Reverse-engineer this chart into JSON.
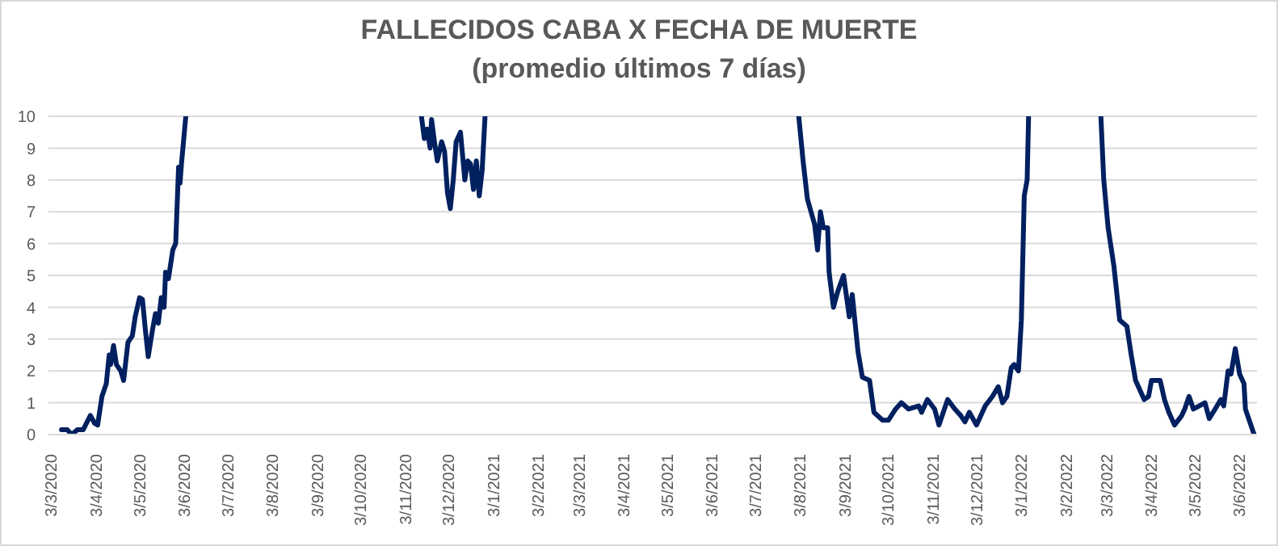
{
  "chart_data": {
    "type": "line",
    "title": "FALLECIDOS CABA X FECHA DE MUERTE",
    "subtitle": "(promedio últimos 7 días)",
    "x": [
      "2020-03-09",
      "2020-03-13",
      "2020-03-16",
      "2020-03-20",
      "2020-03-24",
      "2020-03-29",
      "2020-04-01",
      "2020-04-03",
      "2020-04-06",
      "2020-04-09",
      "2020-04-11",
      "2020-04-12",
      "2020-04-14",
      "2020-04-16",
      "2020-04-19",
      "2020-04-21",
      "2020-04-24",
      "2020-04-27",
      "2020-04-29",
      "2020-05-02",
      "2020-05-04",
      "2020-05-06",
      "2020-05-08",
      "2020-05-11",
      "2020-05-13",
      "2020-05-15",
      "2020-05-17",
      "2020-05-19",
      "2020-05-20",
      "2020-05-22",
      "2020-05-25",
      "2020-05-27",
      "2020-05-29",
      "2020-05-30",
      "2020-05-31",
      "2020-06-03",
      "2020-08-01",
      "2020-11-13",
      "2020-11-15",
      "2020-11-17",
      "2020-11-19",
      "2020-11-20",
      "2020-11-22",
      "2020-11-24",
      "2020-11-27",
      "2020-11-29",
      "2020-12-01",
      "2020-12-03",
      "2020-12-05",
      "2020-12-07",
      "2020-12-10",
      "2020-12-13",
      "2020-12-15",
      "2020-12-17",
      "2020-12-19",
      "2020-12-21",
      "2020-12-23",
      "2020-12-25",
      "2020-12-27",
      "2021-04-01",
      "2021-08-01",
      "2021-08-04",
      "2021-08-07",
      "2021-08-12",
      "2021-08-14",
      "2021-08-16",
      "2021-08-18",
      "2021-08-21",
      "2021-08-22",
      "2021-08-25",
      "2021-08-28",
      "2021-09-01",
      "2021-09-05",
      "2021-09-07",
      "2021-09-11",
      "2021-09-14",
      "2021-09-19",
      "2021-09-22",
      "2021-09-28",
      "2021-10-02",
      "2021-10-07",
      "2021-10-11",
      "2021-10-16",
      "2021-10-23",
      "2021-10-25",
      "2021-10-29",
      "2021-11-03",
      "2021-11-06",
      "2021-11-12",
      "2021-11-17",
      "2021-11-21",
      "2021-11-24",
      "2021-11-27",
      "2021-12-02",
      "2021-12-08",
      "2021-12-13",
      "2021-12-17",
      "2021-12-20",
      "2021-12-23",
      "2021-12-26",
      "2021-12-28",
      "2021-12-31",
      "2022-01-02",
      "2022-01-04",
      "2022-01-06",
      "2022-01-07",
      "2022-02-01",
      "2022-02-26",
      "2022-02-28",
      "2022-03-03",
      "2022-03-07",
      "2022-03-11",
      "2022-03-16",
      "2022-03-19",
      "2022-03-22",
      "2022-03-28",
      "2022-03-31",
      "2022-04-02",
      "2022-04-08",
      "2022-04-11",
      "2022-04-14",
      "2022-04-18",
      "2022-04-23",
      "2022-04-25",
      "2022-04-28",
      "2022-05-01",
      "2022-05-05",
      "2022-05-09",
      "2022-05-12",
      "2022-05-16",
      "2022-05-20",
      "2022-05-22",
      "2022-05-25",
      "2022-05-27",
      "2022-05-30",
      "2022-06-02",
      "2022-06-05",
      "2022-06-06",
      "2022-06-12"
    ],
    "values": [
      0.15,
      0.15,
      0.0,
      0.15,
      0.15,
      0.6,
      0.35,
      0.3,
      1.2,
      1.6,
      2.5,
      2.2,
      2.8,
      2.2,
      2.0,
      1.7,
      2.9,
      3.1,
      3.7,
      4.3,
      4.25,
      3.3,
      2.45,
      3.3,
      3.8,
      3.5,
      4.3,
      4.0,
      5.1,
      4.9,
      5.8,
      6.0,
      8.4,
      7.9,
      8.5,
      10,
      null,
      10,
      9.3,
      9.6,
      9.0,
      9.9,
      9.2,
      8.6,
      9.2,
      8.9,
      7.6,
      7.1,
      8.0,
      9.2,
      9.5,
      8.0,
      8.6,
      8.5,
      7.7,
      8.6,
      7.5,
      8.3,
      10,
      null,
      10,
      8.6,
      7.4,
      6.6,
      5.8,
      7.0,
      6.5,
      6.5,
      5.1,
      4.0,
      4.5,
      5.0,
      3.7,
      4.4,
      2.6,
      1.8,
      1.7,
      0.7,
      0.45,
      0.45,
      0.8,
      1.0,
      0.8,
      0.9,
      0.7,
      1.1,
      0.8,
      0.3,
      1.1,
      0.8,
      0.6,
      0.4,
      0.7,
      0.3,
      0.9,
      1.2,
      1.5,
      1.0,
      1.2,
      2.1,
      2.2,
      2.0,
      3.6,
      7.5,
      8.0,
      10,
      null,
      10,
      8.0,
      6.5,
      5.3,
      3.6,
      3.4,
      2.5,
      1.7,
      1.1,
      1.2,
      1.7,
      1.7,
      1.1,
      0.7,
      0.3,
      0.6,
      0.8,
      1.2,
      0.8,
      0.9,
      1.0,
      0.5,
      0.8,
      1.1,
      0.9,
      2.0,
      1.9,
      2.7,
      1.9,
      1.6,
      0.8,
      0.0
    ],
    "color": "#002060",
    "xlim": [
      "2020-02-29",
      "2022-06-14"
    ],
    "xticks": [
      {
        "value": "2020-03-03",
        "label": "3/3/2020"
      },
      {
        "value": "2020-04-03",
        "label": "3/4/2020"
      },
      {
        "value": "2020-05-03",
        "label": "3/5/2020"
      },
      {
        "value": "2020-06-03",
        "label": "3/6/2020"
      },
      {
        "value": "2020-07-03",
        "label": "3/7/2020"
      },
      {
        "value": "2020-08-03",
        "label": "3/8/2020"
      },
      {
        "value": "2020-09-03",
        "label": "3/9/2020"
      },
      {
        "value": "2020-10-03",
        "label": "3/10/2020"
      },
      {
        "value": "2020-11-03",
        "label": "3/11/2020"
      },
      {
        "value": "2020-12-03",
        "label": "3/12/2020"
      },
      {
        "value": "2021-01-03",
        "label": "3/1/2021"
      },
      {
        "value": "2021-02-03",
        "label": "3/2/2021"
      },
      {
        "value": "2021-03-03",
        "label": "3/3/2021"
      },
      {
        "value": "2021-04-03",
        "label": "3/4/2021"
      },
      {
        "value": "2021-05-03",
        "label": "3/5/2021"
      },
      {
        "value": "2021-06-03",
        "label": "3/6/2021"
      },
      {
        "value": "2021-07-03",
        "label": "3/7/2021"
      },
      {
        "value": "2021-08-03",
        "label": "3/8/2021"
      },
      {
        "value": "2021-09-03",
        "label": "3/9/2021"
      },
      {
        "value": "2021-10-03",
        "label": "3/10/2021"
      },
      {
        "value": "2021-11-03",
        "label": "3/11/2021"
      },
      {
        "value": "2021-12-03",
        "label": "3/12/2021"
      },
      {
        "value": "2022-01-03",
        "label": "3/1/2022"
      },
      {
        "value": "2022-02-03",
        "label": "3/2/2022"
      },
      {
        "value": "2022-03-03",
        "label": "3/3/2022"
      },
      {
        "value": "2022-04-03",
        "label": "3/4/2022"
      },
      {
        "value": "2022-05-03",
        "label": "3/5/2022"
      },
      {
        "value": "2022-06-03",
        "label": "3/6/2022"
      }
    ],
    "ylim": [
      0,
      10
    ],
    "yticks": [
      0,
      1,
      2,
      3,
      4,
      5,
      6,
      7,
      8,
      9,
      10
    ],
    "grid": "y",
    "marker": "none",
    "line_style": "solid"
  }
}
